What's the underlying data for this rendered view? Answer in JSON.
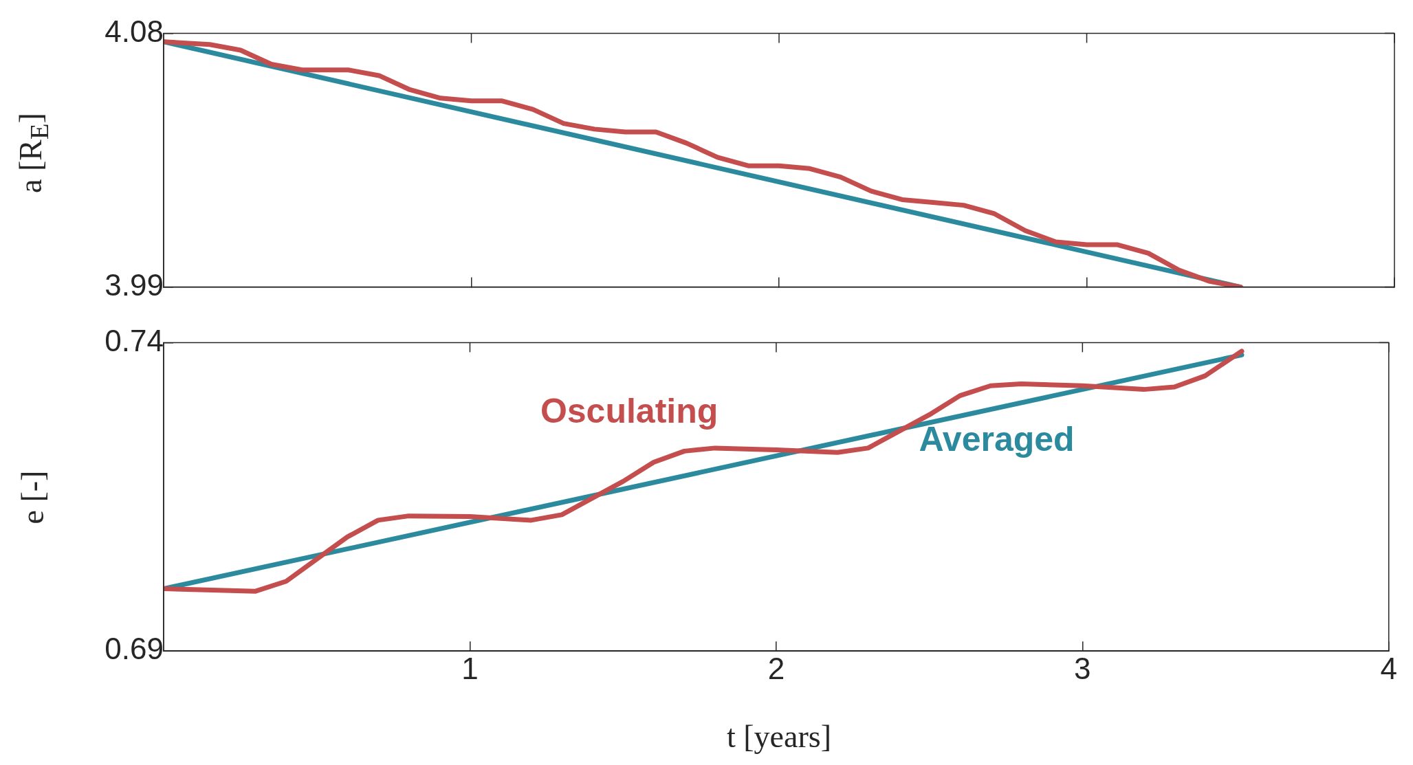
{
  "chart_data": [
    {
      "type": "line",
      "ylabel": "a [R$_{E}$]",
      "xlim": [
        0,
        4
      ],
      "xticks": [
        1,
        2,
        3,
        4
      ],
      "ylim": [
        3.99,
        4.08
      ],
      "yticks": [
        3.99,
        4.08
      ],
      "tick_labels": "y",
      "grid": false,
      "legend": false,
      "marker": "none",
      "line_style": "solid",
      "series": [
        {
          "color": "#c44e4e",
          "x": [
            0,
            0.15,
            0.25,
            0.35,
            0.45,
            0.6,
            0.7,
            0.8,
            0.9,
            1.0,
            1.1,
            1.2,
            1.3,
            1.4,
            1.5,
            1.6,
            1.7,
            1.8,
            1.9,
            2.0,
            2.1,
            2.2,
            2.3,
            2.4,
            2.5,
            2.6,
            2.7,
            2.8,
            2.9,
            3.0,
            3.1,
            3.2,
            3.3,
            3.4,
            3.5
          ],
          "values": [
            4.077,
            4.076,
            4.074,
            4.069,
            4.067,
            4.067,
            4.065,
            4.06,
            4.057,
            4.056,
            4.056,
            4.053,
            4.048,
            4.046,
            4.045,
            4.045,
            4.041,
            4.036,
            4.033,
            4.033,
            4.032,
            4.029,
            4.024,
            4.021,
            4.02,
            4.019,
            4.016,
            4.01,
            4.006,
            4.005,
            4.005,
            4.002,
            3.996,
            3.992,
            3.99
          ]
        },
        {
          "color": "#2b8a9e",
          "x": [
            0,
            3.5
          ],
          "values": [
            4.077,
            3.99
          ]
        }
      ]
    },
    {
      "type": "line",
      "xlabel": "t [years]",
      "ylabel": "e [-]",
      "xlim": [
        0,
        4
      ],
      "xticks": [
        1,
        2,
        3,
        4
      ],
      "ylim": [
        0.69,
        0.74
      ],
      "yticks": [
        0.69,
        0.74
      ],
      "grid": false,
      "legend": false,
      "marker": "none",
      "line_style": "solid",
      "series": [
        {
          "name": "Osculating",
          "color": "#c44e4e",
          "x": [
            0,
            0.3,
            0.4,
            0.5,
            0.6,
            0.7,
            0.8,
            1.0,
            1.2,
            1.3,
            1.4,
            1.5,
            1.6,
            1.7,
            1.8,
            2.0,
            2.2,
            2.3,
            2.4,
            2.5,
            2.6,
            2.7,
            2.8,
            3.0,
            3.2,
            3.3,
            3.4,
            3.52
          ],
          "values": [
            0.7001,
            0.6997,
            0.7013,
            0.7049,
            0.7085,
            0.7112,
            0.7119,
            0.7118,
            0.7112,
            0.7121,
            0.7148,
            0.7175,
            0.7206,
            0.7224,
            0.7229,
            0.7226,
            0.7222,
            0.7229,
            0.7256,
            0.7283,
            0.7314,
            0.733,
            0.7333,
            0.733,
            0.7324,
            0.7328,
            0.7346,
            0.7386
          ]
        },
        {
          "name": "Averaged",
          "color": "#2b8a9e",
          "x": [
            0,
            3.52
          ],
          "values": [
            0.7001,
            0.738
          ]
        }
      ]
    }
  ]
}
